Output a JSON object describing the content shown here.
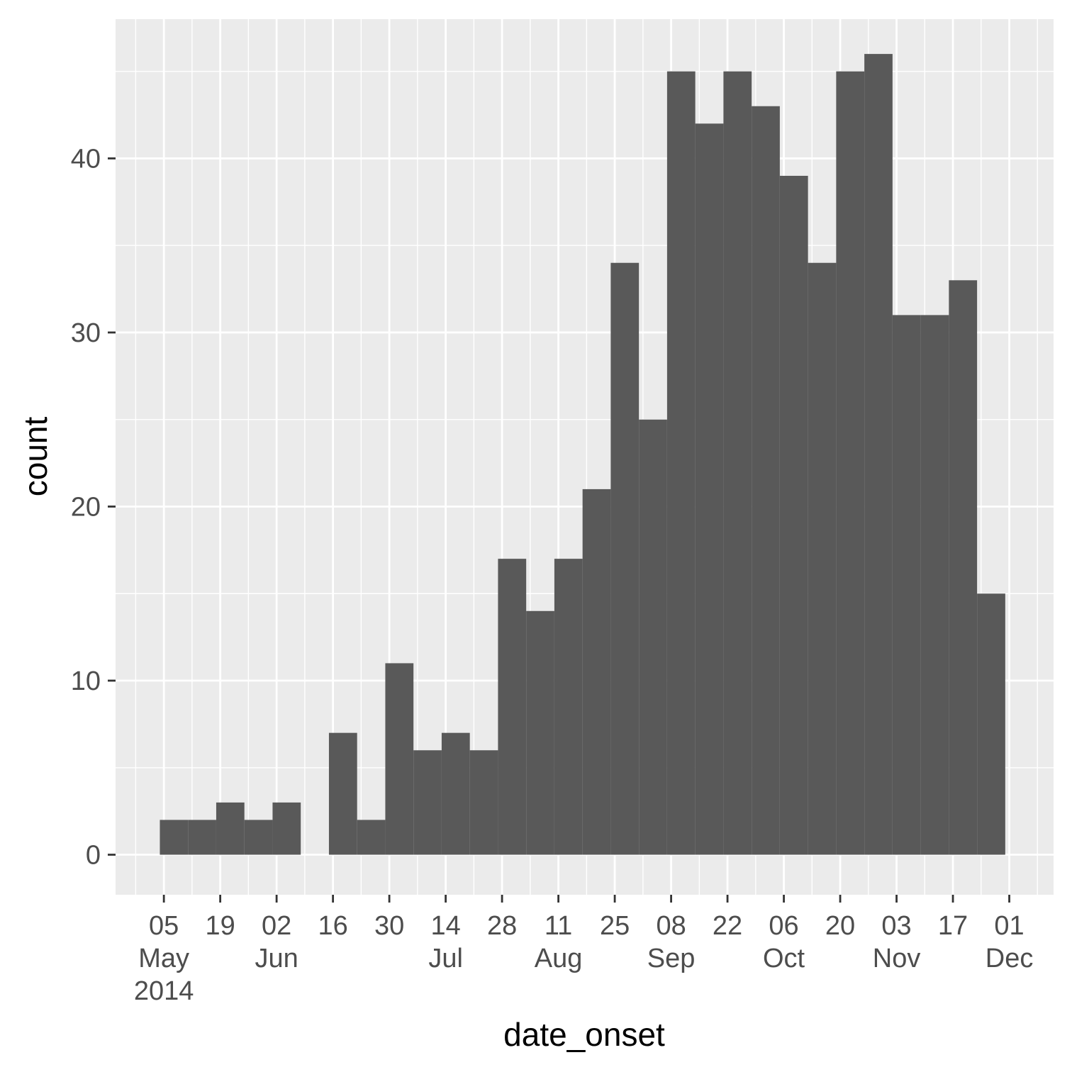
{
  "chart_data": {
    "type": "bar",
    "xlabel": "date_onset",
    "ylabel": "count",
    "grid": true,
    "bin_days": 7,
    "ylim": [
      -2.3,
      48
    ],
    "xlim": [
      "2014-04-23",
      "2014-12-12"
    ],
    "bins": [
      {
        "start": "2014-05-04",
        "count": 2
      },
      {
        "start": "2014-05-11",
        "count": 2
      },
      {
        "start": "2014-05-18",
        "count": 3
      },
      {
        "start": "2014-05-25",
        "count": 2
      },
      {
        "start": "2014-06-01",
        "count": 3
      },
      {
        "start": "2014-06-08",
        "count": 0
      },
      {
        "start": "2014-06-15",
        "count": 7
      },
      {
        "start": "2014-06-22",
        "count": 2
      },
      {
        "start": "2014-06-29",
        "count": 11
      },
      {
        "start": "2014-07-06",
        "count": 6
      },
      {
        "start": "2014-07-13",
        "count": 7
      },
      {
        "start": "2014-07-20",
        "count": 6
      },
      {
        "start": "2014-07-27",
        "count": 17
      },
      {
        "start": "2014-08-03",
        "count": 14
      },
      {
        "start": "2014-08-10",
        "count": 17
      },
      {
        "start": "2014-08-17",
        "count": 21
      },
      {
        "start": "2014-08-24",
        "count": 34
      },
      {
        "start": "2014-08-31",
        "count": 25
      },
      {
        "start": "2014-09-07",
        "count": 45
      },
      {
        "start": "2014-09-14",
        "count": 42
      },
      {
        "start": "2014-09-21",
        "count": 45
      },
      {
        "start": "2014-09-28",
        "count": 43
      },
      {
        "start": "2014-10-05",
        "count": 39
      },
      {
        "start": "2014-10-12",
        "count": 34
      },
      {
        "start": "2014-10-19",
        "count": 45
      },
      {
        "start": "2014-10-26",
        "count": 46
      },
      {
        "start": "2014-11-02",
        "count": 31
      },
      {
        "start": "2014-11-09",
        "count": 31
      },
      {
        "start": "2014-11-16",
        "count": 33
      },
      {
        "start": "2014-11-23",
        "count": 15
      }
    ],
    "y_ticks": [
      0,
      10,
      20,
      30,
      40
    ],
    "x_ticks": [
      {
        "date": "2014-05-05",
        "lines": [
          "05",
          "May",
          "2014"
        ]
      },
      {
        "date": "2014-05-19",
        "lines": [
          "19"
        ]
      },
      {
        "date": "2014-06-02",
        "lines": [
          "02",
          "Jun"
        ]
      },
      {
        "date": "2014-06-16",
        "lines": [
          "16"
        ]
      },
      {
        "date": "2014-06-30",
        "lines": [
          "30"
        ]
      },
      {
        "date": "2014-07-14",
        "lines": [
          "14",
          "Jul"
        ]
      },
      {
        "date": "2014-07-28",
        "lines": [
          "28"
        ]
      },
      {
        "date": "2014-08-11",
        "lines": [
          "11",
          "Aug"
        ]
      },
      {
        "date": "2014-08-25",
        "lines": [
          "25"
        ]
      },
      {
        "date": "2014-09-08",
        "lines": [
          "08",
          "Sep"
        ]
      },
      {
        "date": "2014-09-22",
        "lines": [
          "22"
        ]
      },
      {
        "date": "2014-10-06",
        "lines": [
          "06",
          "Oct"
        ]
      },
      {
        "date": "2014-10-20",
        "lines": [
          "20"
        ]
      },
      {
        "date": "2014-11-03",
        "lines": [
          "03",
          "Nov"
        ]
      },
      {
        "date": "2014-11-17",
        "lines": [
          "17"
        ]
      },
      {
        "date": "2014-12-01",
        "lines": [
          "01",
          "Dec"
        ]
      }
    ],
    "colors": {
      "panel_background": "#EBEBEB",
      "grid_line": "#FFFFFF",
      "bar_fill": "#595959",
      "tick_mark": "#333333",
      "tick_text": "#4D4D4D",
      "title_text": "#000000"
    }
  }
}
